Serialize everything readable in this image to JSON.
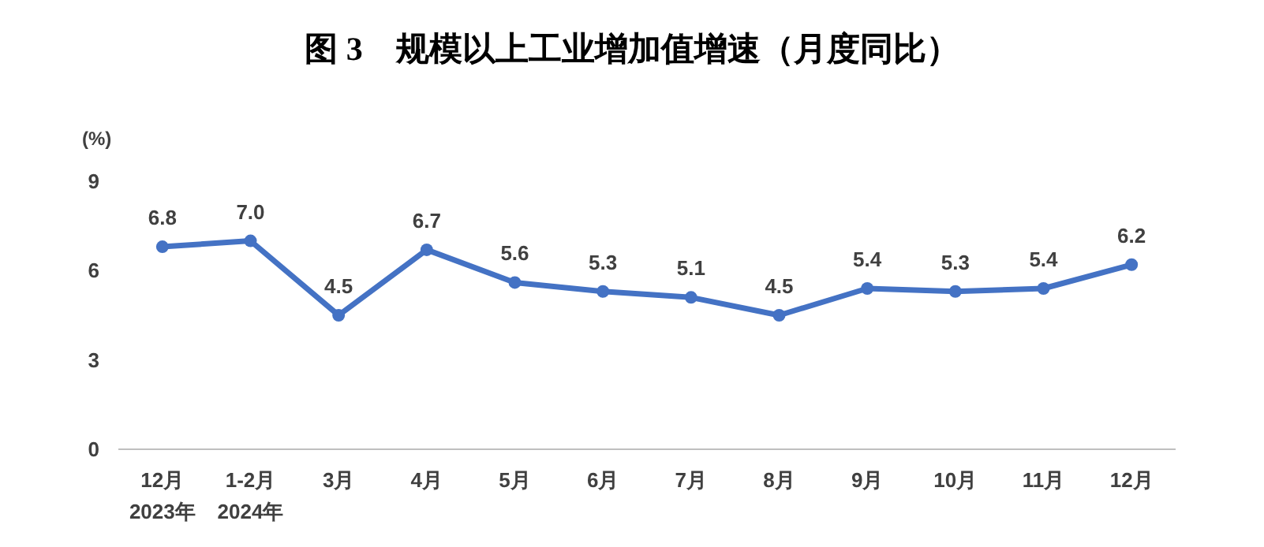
{
  "chart_data": {
    "type": "line",
    "title": "图 3　规模以上工业增加值增速（月度同比）",
    "ylabel": "(%)",
    "categories": [
      "12月\n2023年",
      "1-2月\n2024年",
      "3月",
      "4月",
      "5月",
      "6月",
      "7月",
      "8月",
      "9月",
      "10月",
      "11月",
      "12月"
    ],
    "series": [
      {
        "color": "#4472c4",
        "values": [
          6.8,
          7.0,
          4.5,
          6.7,
          5.6,
          5.3,
          5.1,
          4.5,
          5.4,
          5.3,
          5.4,
          6.2
        ],
        "value_labels": [
          "6.8",
          "7.0",
          "4.5",
          "6.7",
          "5.6",
          "5.3",
          "5.1",
          "4.5",
          "5.4",
          "5.3",
          "5.4",
          "6.2"
        ]
      }
    ],
    "ylim": [
      0,
      9
    ],
    "yticks": [
      0,
      3,
      6,
      9
    ],
    "grid": false,
    "marker": "circle",
    "line_style": "solid"
  }
}
